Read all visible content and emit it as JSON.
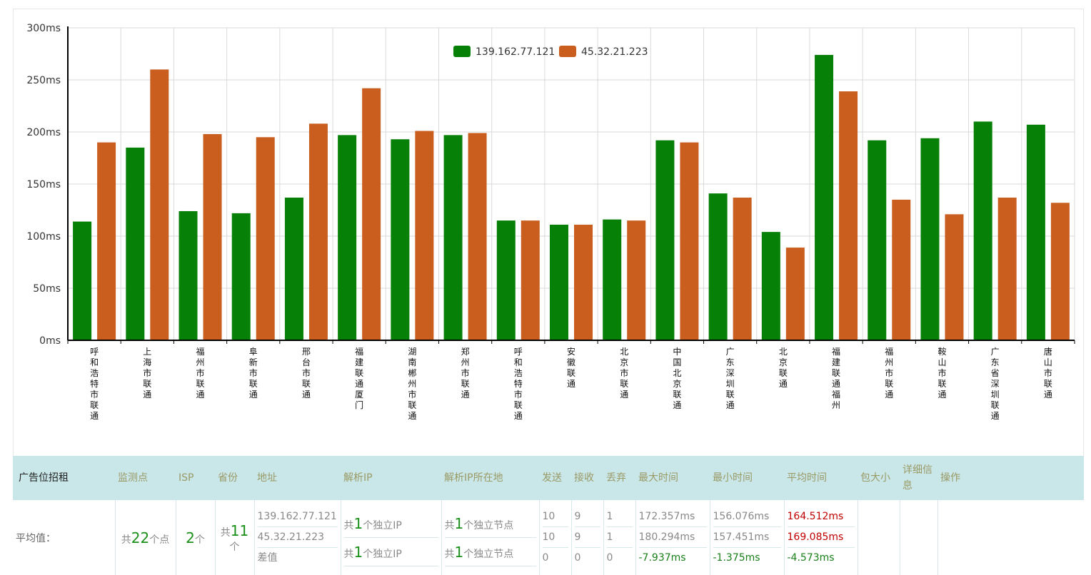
{
  "chart_data": {
    "type": "bar",
    "categories": [
      "呼和浩特市联通",
      "上海市联通",
      "福州市联通",
      "阜新市联通",
      "邢台市联通",
      "福建联通厦门",
      "湖南郴州市联通",
      "郑州市联通",
      "呼和浩特市联通",
      "安徽联通",
      "北京市联通",
      "中国北京联通",
      "广东深圳联通",
      "北京联通",
      "福建联通福州",
      "福州市联通",
      "鞍山市联通",
      "广东省深圳联通",
      "唐山市联通"
    ],
    "series": [
      {
        "name": "139.162.77.121",
        "color": "#078007",
        "values": [
          114,
          185,
          124,
          122,
          137,
          197,
          193,
          197,
          115,
          111,
          116,
          192,
          141,
          104,
          274,
          192,
          194,
          210,
          207
        ]
      },
      {
        "name": "45.32.21.223",
        "color": "#c95e1f",
        "values": [
          190,
          260,
          198,
          195,
          208,
          242,
          201,
          199,
          115,
          111,
          115,
          190,
          137,
          89,
          239,
          135,
          121,
          137,
          132
        ]
      }
    ],
    "yticks": [
      "0ms",
      "50ms",
      "100ms",
      "150ms",
      "200ms",
      "250ms",
      "300ms"
    ],
    "ylim": [
      0,
      300
    ],
    "grid": true,
    "legend_position": "top-center"
  },
  "table": {
    "headers": {
      "ad": "广告位招租",
      "node": "监测点",
      "isp": "ISP",
      "province": "省份",
      "address": "地址",
      "ip": "解析IP",
      "ip_loc": "解析IP所在地",
      "send": "发送",
      "recv": "接收",
      "lost": "丢弃",
      "max": "最大时间",
      "min": "最小时间",
      "avg": "平均时间",
      "size": "包大小",
      "detail": "详细信息",
      "op": "操作"
    },
    "row": {
      "label": "平均值：",
      "node_prefix": "共",
      "node_count": "22",
      "node_suffix": "个点",
      "isp_count": "2",
      "isp_suffix": "个",
      "province_prefix": "共",
      "province_count": "11",
      "province_suffix": "个",
      "addresses": [
        "139.162.77.121",
        "45.32.21.223",
        "差值"
      ],
      "ip_prefix": "共",
      "ip_count_1": "1",
      "ip_count_2": "1",
      "ip_suffix": "个独立IP",
      "loc_prefix": "共",
      "loc_count_1": "1",
      "loc_count_2": "1",
      "loc_suffix": "个独立节点",
      "send": [
        "10",
        "10",
        "0"
      ],
      "recv": [
        "9",
        "9",
        "0"
      ],
      "lost": [
        "1",
        "1",
        "0"
      ],
      "max": [
        "172.357ms",
        "180.294ms",
        "-7.937ms"
      ],
      "min": [
        "156.076ms",
        "157.451ms",
        "-1.375ms"
      ],
      "avg": [
        "164.512ms",
        "169.085ms",
        "-4.573ms"
      ]
    }
  }
}
